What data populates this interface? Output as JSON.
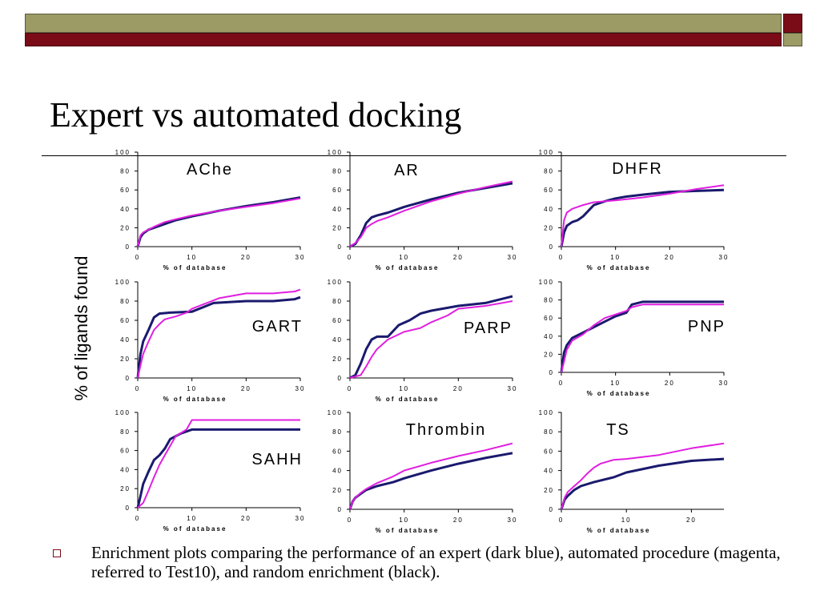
{
  "slide": {
    "title": "Expert vs automated docking",
    "shared_ylabel": "% of ligands found",
    "bullet": "Enrichment plots comparing the performance of an expert (dark blue), automated procedure (magenta, referred to Test10), and random enrichment (black).",
    "colors": {
      "expert": "#1a1a6e",
      "automated": "#e01fe0",
      "band_olive": "#9c9a65",
      "band_maroon": "#7a0c18"
    }
  },
  "chart_data": [
    {
      "type": "line",
      "title": "AChe",
      "xlabel": "% of database",
      "xlim": [
        0,
        30
      ],
      "ylim": [
        0,
        100
      ],
      "xticks": [
        "0",
        "10",
        "20",
        "30"
      ],
      "yticks": [
        "0",
        "20",
        "40",
        "60",
        "80",
        "100"
      ],
      "series": [
        {
          "color": "#1a1a6e",
          "x": [
            0,
            0.5,
            1,
            2,
            3,
            5,
            7,
            10,
            15,
            20,
            25,
            30
          ],
          "y": [
            0,
            10,
            14,
            18,
            20,
            24,
            28,
            32,
            38,
            43,
            47,
            52
          ]
        },
        {
          "color": "#e01fe0",
          "x": [
            0,
            0.5,
            1,
            2,
            3,
            5,
            7,
            10,
            15,
            20,
            25,
            30
          ],
          "y": [
            0,
            12,
            15,
            18,
            21,
            26,
            29,
            33,
            38,
            42,
            46,
            51
          ]
        }
      ]
    },
    {
      "type": "line",
      "title": "AR",
      "xlabel": "% of database",
      "xlim": [
        0,
        30
      ],
      "ylim": [
        0,
        100
      ],
      "xticks": [
        "0",
        "10",
        "20",
        "30"
      ],
      "yticks": [
        "0",
        "20",
        "40",
        "60",
        "80",
        "100"
      ],
      "series": [
        {
          "color": "#1a1a6e",
          "x": [
            0,
            1,
            2,
            3,
            4,
            5,
            7,
            10,
            15,
            20,
            25,
            30
          ],
          "y": [
            0,
            3,
            12,
            25,
            31,
            33,
            36,
            42,
            50,
            57,
            62,
            67
          ]
        },
        {
          "color": "#e01fe0",
          "x": [
            0,
            1,
            2,
            3,
            4,
            5,
            7,
            10,
            15,
            20,
            25,
            30
          ],
          "y": [
            0,
            4,
            10,
            20,
            24,
            27,
            31,
            38,
            48,
            56,
            63,
            69
          ]
        }
      ]
    },
    {
      "type": "line",
      "title": "DHFR",
      "xlabel": "% of database",
      "xlim": [
        0,
        30
      ],
      "ylim": [
        0,
        100
      ],
      "xticks": [
        "0",
        "10",
        "20",
        "30"
      ],
      "yticks": [
        "0",
        "20",
        "40",
        "60",
        "80",
        "100"
      ],
      "series": [
        {
          "color": "#1a1a6e",
          "x": [
            0,
            0.5,
            1,
            2,
            3,
            4,
            5,
            6,
            8,
            10,
            12,
            15,
            20,
            25,
            30
          ],
          "y": [
            0,
            15,
            22,
            26,
            28,
            32,
            38,
            44,
            48,
            51,
            53,
            55,
            58,
            59,
            60
          ]
        },
        {
          "color": "#e01fe0",
          "x": [
            0,
            0.5,
            1,
            2,
            4,
            6,
            8,
            10,
            15,
            20,
            25,
            30
          ],
          "y": [
            0,
            28,
            36,
            40,
            44,
            47,
            48,
            49,
            52,
            56,
            61,
            65
          ]
        }
      ]
    },
    {
      "type": "line",
      "title": "GART",
      "xlabel": "% of database",
      "xlim": [
        0,
        30
      ],
      "ylim": [
        0,
        100
      ],
      "xticks": [
        "0",
        "10",
        "20",
        "30"
      ],
      "yticks": [
        "0",
        "20",
        "40",
        "60",
        "80",
        "100"
      ],
      "series": [
        {
          "color": "#1a1a6e",
          "x": [
            0,
            0.5,
            1,
            2,
            3,
            4,
            6,
            10,
            14,
            20,
            25,
            29,
            30
          ],
          "y": [
            0,
            25,
            38,
            50,
            63,
            67,
            68,
            69,
            78,
            80,
            80,
            82,
            84
          ]
        },
        {
          "color": "#e01fe0",
          "x": [
            0,
            0.5,
            1,
            2,
            3,
            4,
            5,
            7,
            9,
            10,
            15,
            20,
            25,
            29,
            30
          ],
          "y": [
            0,
            13,
            25,
            38,
            50,
            56,
            61,
            64,
            68,
            72,
            83,
            88,
            88,
            90,
            92
          ]
        }
      ]
    },
    {
      "type": "line",
      "title": "PARP",
      "xlabel": "% of database",
      "xlim": [
        0,
        30
      ],
      "ylim": [
        0,
        100
      ],
      "xticks": [
        "0",
        "10",
        "20",
        "30"
      ],
      "yticks": [
        "0",
        "20",
        "40",
        "60",
        "80",
        "100"
      ],
      "series": [
        {
          "color": "#1a1a6e",
          "x": [
            0,
            1,
            2,
            3,
            4,
            5,
            7,
            9,
            11,
            13,
            15,
            20,
            25,
            30
          ],
          "y": [
            0,
            3,
            15,
            30,
            40,
            43,
            43,
            55,
            60,
            67,
            70,
            75,
            78,
            85
          ]
        },
        {
          "color": "#e01fe0",
          "x": [
            0,
            2,
            3,
            4,
            5,
            7,
            10,
            13,
            15,
            18,
            20,
            25,
            30
          ],
          "y": [
            0,
            3,
            12,
            22,
            30,
            40,
            48,
            52,
            58,
            65,
            72,
            75,
            80
          ]
        }
      ]
    },
    {
      "type": "line",
      "title": "PNP",
      "xlabel": "% of database",
      "xlim": [
        0,
        30
      ],
      "ylim": [
        0,
        100
      ],
      "xticks": [
        "0",
        "10",
        "20",
        "30"
      ],
      "yticks": [
        "0",
        "20",
        "40",
        "60",
        "80",
        "100"
      ],
      "series": [
        {
          "color": "#1a1a6e",
          "x": [
            0,
            0.5,
            1,
            2,
            4,
            6,
            8,
            10,
            12,
            13,
            15,
            20,
            25,
            30
          ],
          "y": [
            0,
            22,
            30,
            38,
            44,
            50,
            56,
            62,
            66,
            75,
            78,
            78,
            78,
            78
          ]
        },
        {
          "color": "#e01fe0",
          "x": [
            0,
            0.5,
            1,
            2,
            4,
            6,
            8,
            10,
            12,
            13,
            15,
            20,
            25,
            30
          ],
          "y": [
            0,
            12,
            25,
            35,
            42,
            52,
            60,
            64,
            68,
            72,
            75,
            75,
            75,
            75
          ]
        }
      ]
    },
    {
      "type": "line",
      "title": "SAHH",
      "xlabel": "% of database",
      "xlim": [
        0,
        30
      ],
      "ylim": [
        0,
        100
      ],
      "xticks": [
        "0",
        "10",
        "20",
        "30"
      ],
      "yticks": [
        "0",
        "20",
        "40",
        "60",
        "80",
        "100"
      ],
      "series": [
        {
          "color": "#1a1a6e",
          "x": [
            0,
            0.5,
            1,
            2,
            3,
            4,
            5,
            6,
            8,
            10,
            15,
            20,
            25,
            30
          ],
          "y": [
            0,
            12,
            25,
            38,
            50,
            55,
            62,
            72,
            78,
            82,
            82,
            82,
            82,
            82
          ]
        },
        {
          "color": "#e01fe0",
          "x": [
            0,
            1,
            2,
            3,
            4,
            5,
            6,
            7,
            9,
            10,
            15,
            20,
            25,
            30
          ],
          "y": [
            0,
            5,
            18,
            32,
            45,
            55,
            65,
            75,
            82,
            92,
            92,
            92,
            92,
            92
          ]
        }
      ]
    },
    {
      "type": "line",
      "title": "Thrombin",
      "xlabel": "% of database",
      "xlim": [
        0,
        30
      ],
      "ylim": [
        0,
        100
      ],
      "xticks": [
        "0",
        "10",
        "20",
        "30"
      ],
      "yticks": [
        "0",
        "20",
        "40",
        "60",
        "80",
        "100"
      ],
      "series": [
        {
          "color": "#1a1a6e",
          "x": [
            0,
            0.5,
            1,
            2,
            3,
            5,
            8,
            10,
            15,
            20,
            25,
            30
          ],
          "y": [
            0,
            8,
            12,
            16,
            20,
            24,
            28,
            32,
            40,
            47,
            53,
            58
          ]
        },
        {
          "color": "#e01fe0",
          "x": [
            0,
            0.5,
            1,
            2,
            3,
            5,
            8,
            10,
            15,
            20,
            25,
            30
          ],
          "y": [
            0,
            8,
            12,
            17,
            21,
            27,
            34,
            40,
            48,
            55,
            61,
            68
          ]
        }
      ]
    },
    {
      "type": "line",
      "title": "TS",
      "xlabel": "% of database",
      "xlim": [
        0,
        25
      ],
      "ylim": [
        0,
        100
      ],
      "xticks": [
        "0",
        "10",
        "20"
      ],
      "yticks": [
        "0",
        "20",
        "40",
        "60",
        "80",
        "100"
      ],
      "series": [
        {
          "color": "#1a1a6e",
          "x": [
            0,
            0.5,
            1,
            2,
            3,
            5,
            8,
            10,
            15,
            20,
            25
          ],
          "y": [
            0,
            10,
            14,
            20,
            24,
            28,
            33,
            38,
            45,
            50,
            52
          ]
        },
        {
          "color": "#e01fe0",
          "x": [
            0,
            0.5,
            1,
            2,
            3,
            4,
            5,
            6,
            8,
            10,
            15,
            20,
            25
          ],
          "y": [
            0,
            12,
            18,
            24,
            30,
            37,
            43,
            47,
            51,
            52,
            56,
            63,
            68
          ]
        }
      ]
    }
  ]
}
